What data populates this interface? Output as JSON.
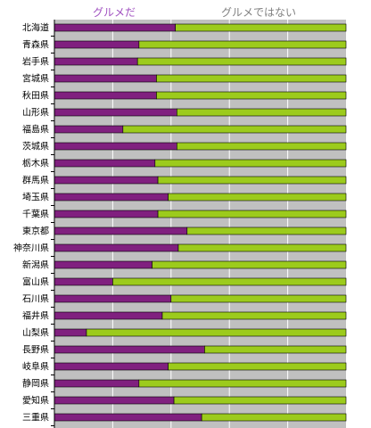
{
  "chart_data": {
    "type": "bar",
    "orientation": "horizontal",
    "stacked": true,
    "normalized": true,
    "grid": true,
    "legend_position": "top",
    "xlim": [
      0,
      100
    ],
    "categories": [
      "北海道",
      "青森県",
      "岩手県",
      "宮城県",
      "秋田県",
      "山形県",
      "福島県",
      "茨城県",
      "栃木県",
      "群馬県",
      "埼玉県",
      "千葉県",
      "東京都",
      "神奈川県",
      "新潟県",
      "富山県",
      "石川県",
      "福井県",
      "山梨県",
      "長野県",
      "岐阜県",
      "静岡県",
      "愛知県",
      "三重県"
    ],
    "series": [
      {
        "name": "グルメだ",
        "color": "#80207f",
        "values": [
          41.5,
          29.0,
          28.5,
          35.0,
          35.0,
          42.0,
          23.5,
          42.0,
          34.5,
          35.5,
          39.0,
          35.5,
          45.5,
          42.5,
          33.5,
          20.0,
          40.0,
          37.0,
          11.0,
          51.5,
          39.0,
          29.0,
          41.0,
          50.5
        ]
      },
      {
        "name": "グルメではない",
        "color": "#9ccb1c",
        "values": [
          58.5,
          71.0,
          71.5,
          65.0,
          65.0,
          58.0,
          76.5,
          58.0,
          65.5,
          64.5,
          61.0,
          64.5,
          54.5,
          57.5,
          66.5,
          80.0,
          60.0,
          63.0,
          89.0,
          48.5,
          61.0,
          71.0,
          59.0,
          49.5
        ]
      }
    ]
  },
  "colors": {
    "plot_background": "#c0c0c0",
    "gridline": "#ffffff",
    "legend_series1": "#a050c0",
    "legend_series2": "#808080"
  }
}
